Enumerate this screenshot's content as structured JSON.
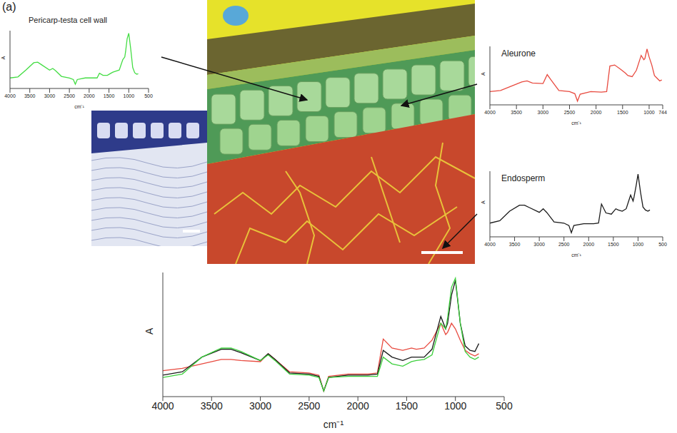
{
  "panel_label": "(a)",
  "chart_data": [
    {
      "type": "line",
      "title": "Pericarp-testa cell wall",
      "x_label": "cm⁻¹",
      "y_label": "A",
      "tick_labels": "x",
      "color": "#44dd44",
      "x": [
        4000,
        3800,
        3600,
        3400,
        3300,
        3200,
        3000,
        2920,
        2850,
        2700,
        2500,
        2400,
        2350,
        2300,
        2100,
        1900,
        1800,
        1740,
        1650,
        1540,
        1450,
        1400,
        1320,
        1240,
        1150,
        1100,
        1080,
        1040,
        1000,
        950,
        900,
        850,
        800,
        760
      ],
      "values": [
        0.15,
        0.17,
        0.3,
        0.44,
        0.45,
        0.4,
        0.3,
        0.33,
        0.29,
        0.18,
        0.15,
        0.12,
        0.03,
        0.12,
        0.15,
        0.15,
        0.15,
        0.24,
        0.2,
        0.2,
        0.24,
        0.26,
        0.28,
        0.3,
        0.5,
        0.55,
        0.65,
        0.9,
        1.0,
        0.7,
        0.35,
        0.25,
        0.22,
        0.23
      ],
      "xlim": [
        500,
        4000
      ],
      "xticks": [
        4000,
        3500,
        3000,
        2500,
        2000,
        1500,
        1000,
        500
      ],
      "ylim": [
        -0.05,
        1.05
      ],
      "yticks": []
    },
    {
      "type": "line",
      "title": "Aleurone",
      "x_label": "cm⁻¹",
      "y_label": "A",
      "tick_labels": "x",
      "color": "#e84a3f",
      "x": [
        4000,
        3800,
        3600,
        3400,
        3300,
        3200,
        3000,
        2920,
        2850,
        2700,
        2500,
        2400,
        2350,
        2300,
        2100,
        1900,
        1800,
        1740,
        1650,
        1540,
        1450,
        1400,
        1320,
        1240,
        1150,
        1100,
        1080,
        1040,
        1000,
        950,
        900,
        850,
        800,
        760
      ],
      "values": [
        0.2,
        0.22,
        0.3,
        0.38,
        0.4,
        0.36,
        0.35,
        0.52,
        0.42,
        0.22,
        0.2,
        0.16,
        0.02,
        0.15,
        0.2,
        0.19,
        0.2,
        0.68,
        0.7,
        0.62,
        0.55,
        0.5,
        0.48,
        0.6,
        0.88,
        0.8,
        0.82,
        1.0,
        0.85,
        0.7,
        0.5,
        0.45,
        0.4,
        0.42
      ],
      "xlim": [
        744,
        4000
      ],
      "xticks": [
        4000,
        3500,
        3000,
        2500,
        2000,
        1500,
        1000,
        744
      ],
      "ylim": [
        -0.05,
        1.05
      ],
      "yticks": []
    },
    {
      "type": "line",
      "title": "Endosperm",
      "x_label": "cm⁻¹",
      "y_label": "A",
      "tick_labels": "x",
      "color": "#1a1a1a",
      "x": [
        4000,
        3800,
        3600,
        3400,
        3300,
        3200,
        3000,
        2920,
        2850,
        2700,
        2500,
        2400,
        2350,
        2300,
        2100,
        1900,
        1800,
        1740,
        1650,
        1540,
        1450,
        1400,
        1320,
        1240,
        1150,
        1100,
        1080,
        1040,
        1000,
        950,
        900,
        850,
        800,
        760
      ],
      "values": [
        0.18,
        0.22,
        0.38,
        0.48,
        0.48,
        0.44,
        0.36,
        0.42,
        0.36,
        0.2,
        0.18,
        0.14,
        0.02,
        0.14,
        0.17,
        0.17,
        0.18,
        0.5,
        0.35,
        0.33,
        0.42,
        0.4,
        0.38,
        0.42,
        0.65,
        0.55,
        0.62,
        0.8,
        1.0,
        0.7,
        0.45,
        0.4,
        0.38,
        0.4
      ],
      "xlim": [
        500,
        4000
      ],
      "xticks": [
        4000,
        3500,
        3000,
        2500,
        2000,
        1500,
        1000,
        500
      ],
      "ylim": [
        -0.05,
        1.05
      ],
      "yticks": []
    },
    {
      "type": "line",
      "x_label": "cm⁻¹",
      "y_label": "A",
      "tick_labels": "x",
      "x": [
        4000,
        3800,
        3600,
        3400,
        3300,
        3200,
        3000,
        2920,
        2850,
        2700,
        2500,
        2400,
        2350,
        2300,
        2100,
        1900,
        1800,
        1740,
        1650,
        1540,
        1450,
        1400,
        1320,
        1240,
        1150,
        1100,
        1080,
        1040,
        1000,
        950,
        900,
        850,
        800,
        760
      ],
      "series": [
        {
          "color": "#e84a3f",
          "values": [
            0.18,
            0.2,
            0.24,
            0.28,
            0.28,
            0.27,
            0.26,
            0.33,
            0.28,
            0.17,
            0.16,
            0.14,
            0.0,
            0.13,
            0.15,
            0.15,
            0.16,
            0.46,
            0.38,
            0.36,
            0.38,
            0.37,
            0.38,
            0.45,
            0.6,
            0.5,
            0.52,
            0.6,
            0.55,
            0.45,
            0.36,
            0.33,
            0.31,
            0.33
          ]
        },
        {
          "color": "#1a1a1a",
          "values": [
            0.14,
            0.17,
            0.3,
            0.37,
            0.37,
            0.34,
            0.27,
            0.33,
            0.28,
            0.16,
            0.15,
            0.13,
            0.0,
            0.12,
            0.14,
            0.14,
            0.15,
            0.36,
            0.3,
            0.27,
            0.3,
            0.3,
            0.3,
            0.37,
            0.66,
            0.55,
            0.6,
            0.85,
            0.98,
            0.6,
            0.4,
            0.36,
            0.35,
            0.42
          ]
        },
        {
          "color": "#3ccf3c",
          "values": [
            0.12,
            0.15,
            0.3,
            0.38,
            0.38,
            0.35,
            0.27,
            0.32,
            0.27,
            0.15,
            0.14,
            0.12,
            0.0,
            0.12,
            0.13,
            0.13,
            0.13,
            0.3,
            0.24,
            0.22,
            0.26,
            0.27,
            0.28,
            0.32,
            0.6,
            0.55,
            0.65,
            0.92,
            1.0,
            0.6,
            0.35,
            0.3,
            0.28,
            0.3
          ]
        }
      ],
      "xlim": [
        500,
        4000
      ],
      "xticks": [
        4000,
        3500,
        3000,
        2500,
        2000,
        1500,
        1000,
        500
      ],
      "ylim": [
        -0.05,
        1.05
      ],
      "yticks": []
    }
  ]
}
